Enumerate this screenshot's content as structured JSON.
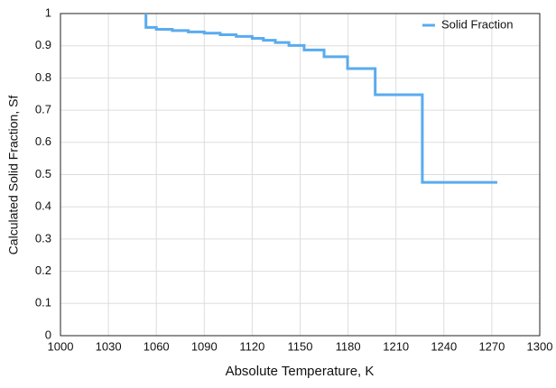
{
  "chart_data": {
    "type": "line",
    "x_label": "Absolute Temperature, K",
    "y_label": "Calculated Solid Fraction, Sf",
    "xlim": [
      1000,
      1300
    ],
    "xticks": [
      1000,
      1030,
      1060,
      1090,
      1120,
      1150,
      1180,
      1210,
      1240,
      1270,
      1300
    ],
    "ylim": [
      0,
      1
    ],
    "yticks": [
      0,
      0.1,
      0.2,
      0.3,
      0.4,
      0.5,
      0.6,
      0.7,
      0.8,
      0.9,
      1
    ],
    "grid": true,
    "legend": "upper right",
    "series": [
      {
        "name": "Solid Fraction",
        "color": "#5aabee",
        "x": [
          1053.5,
          1053.5,
          1060,
          1060,
          1070,
          1070,
          1080,
          1080,
          1090,
          1090,
          1100,
          1100,
          1110,
          1110,
          1120,
          1120,
          1127,
          1127,
          1134.5,
          1134.5,
          1143,
          1143,
          1152.5,
          1152.5,
          1165,
          1165,
          1179.7,
          1179.7,
          1197,
          1197,
          1226.5,
          1226.5,
          1273.4
        ],
        "values": [
          1,
          0.957,
          0.957,
          0.951,
          0.951,
          0.947,
          0.947,
          0.943,
          0.943,
          0.939,
          0.939,
          0.934,
          0.934,
          0.929,
          0.929,
          0.923,
          0.923,
          0.917,
          0.917,
          0.91,
          0.91,
          0.901,
          0.901,
          0.887,
          0.887,
          0.866,
          0.866,
          0.829,
          0.829,
          0.748,
          0.748,
          0.476,
          0.476
        ]
      }
    ]
  }
}
